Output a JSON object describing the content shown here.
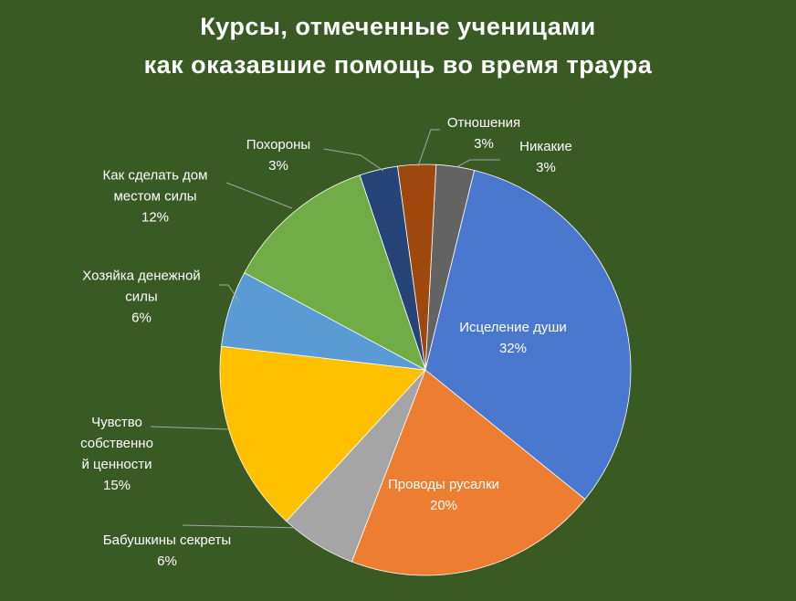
{
  "chart_data": {
    "type": "pie",
    "title": "Курсы, отмеченные ученицами\nкак оказавшие помощь во время траура",
    "categories": [
      "Никакие",
      "Исцеление души",
      "Проводы русалки",
      "Бабушкины секреты",
      "Чувство\nсобственно\nй ценности",
      "Хозяйка денежной\nсилы",
      "Как сделать дом\nместом силы",
      "Похороны",
      "Отношения"
    ],
    "values": [
      3,
      32,
      20,
      6,
      15,
      6,
      12,
      3,
      3
    ],
    "value_labels": [
      "3%",
      "32%",
      "20%",
      "6%",
      "15%",
      "6%",
      "12%",
      "3%",
      "3%"
    ],
    "colors": [
      "#636363",
      "#4a78cf",
      "#ed7d31",
      "#a5a5a5",
      "#ffc000",
      "#5b9bd5",
      "#70ad47",
      "#264478",
      "#9e480e"
    ]
  }
}
